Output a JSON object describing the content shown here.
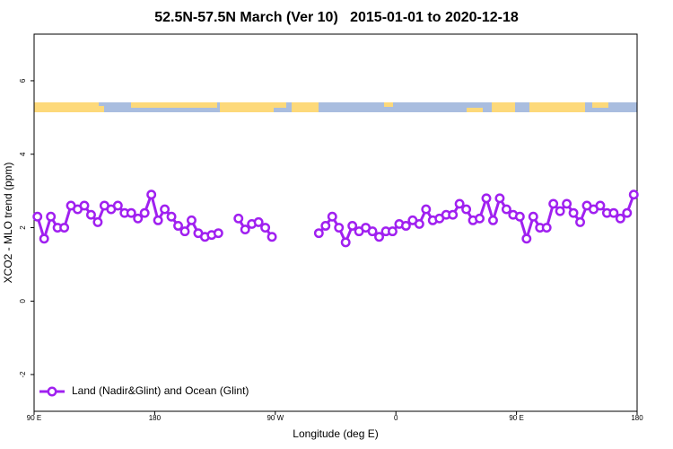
{
  "chart_data": {
    "type": "line",
    "title": "52.5N-57.5N March (Ver 10)   2015-01-01 to 2020-12-18",
    "x_label": "Longitude (deg E)",
    "y_label": "XCO2 - MLO trend (ppm)",
    "xlim": [
      90,
      540
    ],
    "xticks": [
      {
        "value": 90,
        "label": "90 E"
      },
      180,
      {
        "value": 270,
        "label": "90 W"
      },
      {
        "value": 360,
        "label": "0"
      },
      {
        "value": 450,
        "label": "90 E"
      },
      {
        "value": 540,
        "label": "180"
      }
    ],
    "ylim": [
      -3.0,
      7.27
    ],
    "yticks": [
      -2,
      0,
      2,
      4,
      6
    ],
    "legend": "bottom-left",
    "series": [
      {
        "name": "Land (Nadir&Glint) and Ocean (Glint)",
        "color": "#a020f0",
        "x": [
          92.5,
          97.5,
          102.5,
          107.5,
          112.5,
          117.5,
          122.5,
          127.5,
          132.5,
          137.5,
          142.5,
          147.5,
          152.5,
          157.5,
          162.5,
          167.5,
          172.5,
          177.5,
          182.5,
          187.5,
          192.5,
          197.5,
          202.5,
          207.5,
          212.5,
          217.5,
          222.5,
          227.5,
          232.5,
          237.5,
          242.5,
          247.5,
          252.5,
          257.5,
          262.5,
          267.5,
          272.5,
          277.5,
          282.5,
          287.5,
          292.5,
          297.5,
          302.5,
          307.5,
          312.5,
          317.5,
          322.5,
          327.5,
          332.5,
          337.5,
          342.5,
          347.5,
          352.5,
          357.5,
          362.5,
          367.5,
          372.5,
          377.5,
          382.5,
          387.5,
          392.5,
          397.5,
          402.5,
          407.5,
          412.5,
          417.5,
          422.5,
          427.5,
          432.5,
          437.5,
          442.5,
          447.5,
          452.5,
          457.5,
          462.5,
          467.5,
          472.5,
          477.5,
          482.5,
          487.5,
          492.5,
          497.5,
          502.5,
          507.5,
          512.5,
          517.5,
          522.5,
          527.5,
          532.5,
          537.5
        ],
        "values": [
          2.3,
          1.7,
          2.3,
          2.0,
          2.0,
          2.6,
          2.5,
          2.6,
          2.35,
          2.15,
          2.6,
          2.5,
          2.6,
          2.4,
          2.4,
          2.25,
          2.4,
          2.9,
          2.2,
          2.5,
          2.3,
          2.05,
          1.9,
          2.2,
          1.85,
          1.75,
          1.8,
          1.85,
          null,
          null,
          2.25,
          1.95,
          2.1,
          2.15,
          2.0,
          1.75,
          null,
          null,
          null,
          null,
          null,
          null,
          1.85,
          2.05,
          2.3,
          2.0,
          1.6,
          2.05,
          1.9,
          2.0,
          1.9,
          1.75,
          1.9,
          1.9,
          2.1,
          2.05,
          2.2,
          2.1,
          2.5,
          2.2,
          2.25,
          2.35,
          2.35,
          2.65,
          2.5,
          2.2,
          2.25,
          2.8,
          2.2,
          2.8,
          2.5,
          2.35,
          2.3,
          1.7,
          2.3,
          2.0,
          2.0,
          2.65,
          2.45,
          2.65,
          2.4,
          2.15,
          2.6,
          2.5,
          2.6,
          2.4,
          2.4,
          2.25,
          2.4,
          2.9
        ]
      }
    ]
  }
}
